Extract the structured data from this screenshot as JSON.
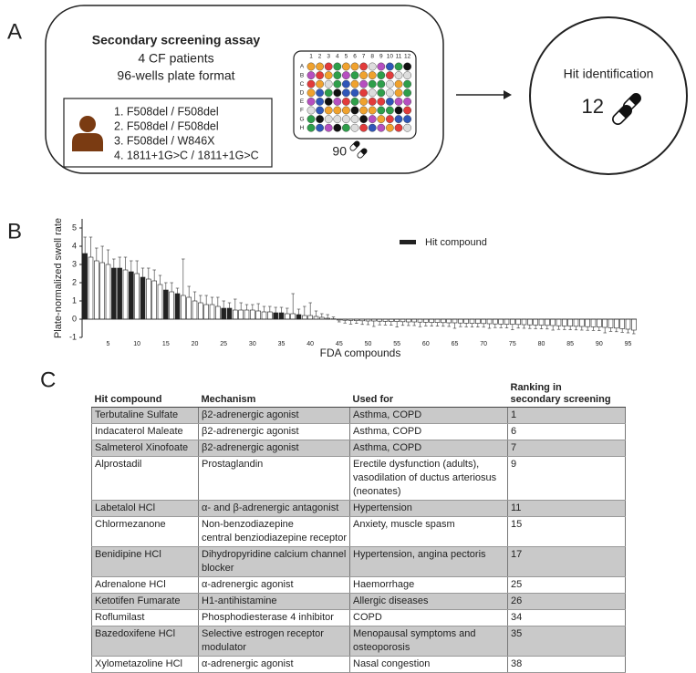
{
  "panel_a": {
    "label": "A",
    "title": "Secondary screening assay",
    "lines": [
      "4 CF patients",
      "96-wells plate format"
    ],
    "patients": [
      "1. F508del / F508del",
      "2. F508del / F508del",
      "3. F508del / W846X",
      "4. 1811+1G>C / 1811+1G>C"
    ],
    "plate_cols": [
      "1",
      "2",
      "3",
      "4",
      "5",
      "6",
      "7",
      "8",
      "9",
      "10",
      "11",
      "12"
    ],
    "plate_rows": [
      "A",
      "B",
      "C",
      "D",
      "E",
      "F",
      "G",
      "H"
    ],
    "compound_count": "90",
    "hit_title": "Hit identification",
    "hit_count": "12"
  },
  "chart_data": {
    "type": "bar",
    "label": "B",
    "x_label": "FDA compounds",
    "y_label": "Plate-normalized swell rate",
    "x": [
      1,
      2,
      3,
      4,
      5,
      6,
      7,
      8,
      9,
      10,
      11,
      12,
      13,
      14,
      15,
      16,
      17,
      18,
      19,
      20,
      21,
      22,
      23,
      24,
      25,
      26,
      27,
      28,
      29,
      30,
      31,
      32,
      33,
      34,
      35,
      36,
      37,
      38,
      39,
      40,
      41,
      42,
      43,
      44,
      45,
      46,
      47,
      48,
      49,
      50,
      51,
      52,
      53,
      54,
      55,
      56,
      57,
      58,
      59,
      60,
      61,
      62,
      63,
      64,
      65,
      66,
      67,
      68,
      69,
      70,
      71,
      72,
      73,
      74,
      75,
      76,
      77,
      78,
      79,
      80,
      81,
      82,
      83,
      84,
      85,
      86,
      87,
      88,
      89,
      90,
      91,
      92,
      93,
      94,
      95,
      96
    ],
    "xlim": [
      0.5,
      96.5
    ],
    "xticks": [
      5,
      10,
      15,
      20,
      25,
      30,
      35,
      40,
      45,
      50,
      55,
      60,
      65,
      70,
      75,
      80,
      85,
      90,
      95
    ],
    "ylim": [
      -1,
      5.5
    ],
    "yticks": [
      -1,
      0,
      1,
      2,
      3,
      4,
      5
    ],
    "series": [
      {
        "name": "Hit compound",
        "color": "#222222",
        "values": [
          3.6,
          null,
          null,
          null,
          null,
          2.8,
          2.8,
          null,
          2.6,
          null,
          2.3,
          null,
          null,
          null,
          1.6,
          null,
          1.4,
          null,
          null,
          null,
          null,
          null,
          null,
          null,
          0.6,
          0.6,
          null,
          null,
          null,
          null,
          null,
          null,
          null,
          0.35,
          0.35,
          null,
          null,
          0.25,
          null,
          null,
          null,
          null,
          null,
          null,
          null,
          null,
          null,
          null,
          null,
          null,
          null,
          null,
          null,
          null,
          null,
          null,
          null,
          null,
          null,
          null,
          null,
          null,
          null,
          null,
          null,
          null,
          null,
          null,
          null,
          null,
          null,
          null,
          null,
          null,
          null,
          null,
          null,
          null,
          null,
          null,
          null,
          null,
          null,
          null,
          null,
          null,
          null,
          null,
          null,
          null,
          null,
          null,
          null,
          null,
          null,
          null
        ],
        "errors": [
          0.9,
          null,
          null,
          null,
          null,
          0.5,
          0.6,
          null,
          0.6,
          null,
          0.5,
          null,
          null,
          null,
          0.4,
          null,
          0.3,
          null,
          null,
          null,
          null,
          null,
          null,
          null,
          0.4,
          0.3,
          null,
          null,
          null,
          null,
          null,
          null,
          null,
          0.3,
          0.3,
          null,
          null,
          0.3,
          null,
          null,
          null,
          null,
          null,
          null,
          null,
          null,
          null,
          null,
          null,
          null,
          null,
          null,
          null,
          null,
          null,
          null,
          null,
          null,
          null,
          null,
          null,
          null,
          null,
          null,
          null,
          null,
          null,
          null,
          null,
          null,
          null,
          null,
          null,
          null,
          null,
          null,
          null,
          null,
          null,
          null,
          null,
          null,
          null,
          null,
          null,
          null,
          null,
          null,
          null,
          null,
          null,
          null,
          null,
          null,
          null,
          null
        ]
      },
      {
        "color": "#ffffff",
        "values": [
          null,
          3.4,
          3.2,
          3.1,
          3.0,
          null,
          null,
          2.7,
          null,
          2.5,
          null,
          2.2,
          2.1,
          1.9,
          null,
          1.5,
          null,
          1.3,
          1.2,
          1.0,
          0.9,
          0.8,
          0.8,
          0.7,
          null,
          null,
          0.5,
          0.5,
          0.5,
          0.5,
          0.45,
          0.4,
          0.4,
          null,
          null,
          0.3,
          0.3,
          null,
          0.2,
          0.2,
          0.15,
          0.1,
          0.05,
          0.02,
          -0.05,
          -0.06,
          -0.07,
          -0.08,
          -0.09,
          -0.1,
          -0.1,
          -0.11,
          -0.12,
          -0.13,
          -0.13,
          -0.14,
          -0.15,
          -0.15,
          -0.16,
          -0.17,
          -0.18,
          -0.18,
          -0.19,
          -0.2,
          -0.2,
          -0.21,
          -0.22,
          -0.23,
          -0.23,
          -0.24,
          -0.25,
          -0.26,
          -0.27,
          -0.28,
          -0.28,
          -0.29,
          -0.3,
          -0.31,
          -0.32,
          -0.33,
          -0.34,
          -0.35,
          -0.36,
          -0.37,
          -0.38,
          -0.39,
          -0.4,
          -0.41,
          -0.42,
          -0.43,
          -0.45,
          -0.47,
          -0.49,
          -0.52,
          -0.55,
          -0.6
        ],
        "errors": [
          null,
          1.1,
          0.7,
          0.9,
          0.8,
          null,
          null,
          0.7,
          null,
          0.7,
          null,
          0.6,
          0.6,
          0.5,
          null,
          0.5,
          null,
          2.0,
          0.6,
          0.5,
          0.4,
          0.5,
          0.4,
          0.5,
          null,
          null,
          0.6,
          0.4,
          0.3,
          0.3,
          0.4,
          0.3,
          0.3,
          null,
          null,
          0.3,
          1.1,
          null,
          0.5,
          0.7,
          0.3,
          0.2,
          0.2,
          0.1,
          0.1,
          0.15,
          0.2,
          0.15,
          0.2,
          0.2,
          0.3,
          0.2,
          0.2,
          0.2,
          0.3,
          0.2,
          0.2,
          0.2,
          0.25,
          0.2,
          0.2,
          0.2,
          0.2,
          0.2,
          0.3,
          0.2,
          0.2,
          0.2,
          0.2,
          0.2,
          0.25,
          0.2,
          0.2,
          0.2,
          0.3,
          0.2,
          0.2,
          0.2,
          0.2,
          0.2,
          0.2,
          0.25,
          0.2,
          0.2,
          0.2,
          0.2,
          0.2,
          0.2,
          0.2,
          0.2,
          0.3,
          0.2,
          0.2,
          0.2,
          0.2,
          0.2
        ]
      }
    ]
  },
  "panel_c": {
    "label": "C",
    "table": {
      "header": [
        [
          "Hit compound"
        ],
        [
          "Mechanism"
        ],
        [
          "Used for"
        ],
        [
          "Ranking in",
          "secondary screening"
        ]
      ],
      "rows": [
        [
          [
            "Terbutaline Sulfate"
          ],
          [
            "β2-adrenergic agonist"
          ],
          [
            "Asthma, COPD"
          ],
          [
            "1"
          ]
        ],
        [
          [
            "Indacaterol Maleate"
          ],
          [
            "β2-adrenergic agonist"
          ],
          [
            "Asthma, COPD"
          ],
          [
            "6"
          ]
        ],
        [
          [
            "Salmeterol Xinofoate"
          ],
          [
            "β2-adrenergic agonist"
          ],
          [
            "Asthma, COPD"
          ],
          [
            "7"
          ]
        ],
        [
          [
            "Alprostadil"
          ],
          [
            "Prostaglandin"
          ],
          [
            "Erectile dysfunction (adults),",
            "vasodilation of ductus arteriosus",
            "(neonates)"
          ],
          [
            "9"
          ]
        ],
        [
          [
            "Labetalol HCl"
          ],
          [
            "α- and β-adrenergic antagonist"
          ],
          [
            "Hypertension"
          ],
          [
            "11"
          ]
        ],
        [
          [
            "Chlormezanone"
          ],
          [
            "Non-benzodiazepine",
            "central benziodiazepine receptor"
          ],
          [
            "Anxiety, muscle spasm"
          ],
          [
            "15"
          ]
        ],
        [
          [
            "Benidipine HCl"
          ],
          [
            "Dihydropyridine calcium channel",
            "blocker"
          ],
          [
            "Hypertension, angina pectoris"
          ],
          [
            "17"
          ]
        ],
        [
          [
            "Adrenalone HCl"
          ],
          [
            "α-adrenergic agonist"
          ],
          [
            "Haemorrhage"
          ],
          [
            "25"
          ]
        ],
        [
          [
            "Ketotifen Fumarate"
          ],
          [
            "H1-antihistamine"
          ],
          [
            "Allergic diseases"
          ],
          [
            "26"
          ]
        ],
        [
          [
            "Roflumilast"
          ],
          [
            "Phosphodiesterase 4 inhibitor"
          ],
          [
            "COPD"
          ],
          [
            "34"
          ]
        ],
        [
          [
            "Bazedoxifene HCl"
          ],
          [
            "Selective estrogen receptor",
            "modulator"
          ],
          [
            "Menopausal symptoms and",
            "osteoporosis"
          ],
          [
            "35"
          ]
        ],
        [
          [
            "Xylometazoline HCl"
          ],
          [
            "α-adrenergic agonist"
          ],
          [
            "Nasal congestion"
          ],
          [
            "38"
          ]
        ]
      ]
    }
  }
}
